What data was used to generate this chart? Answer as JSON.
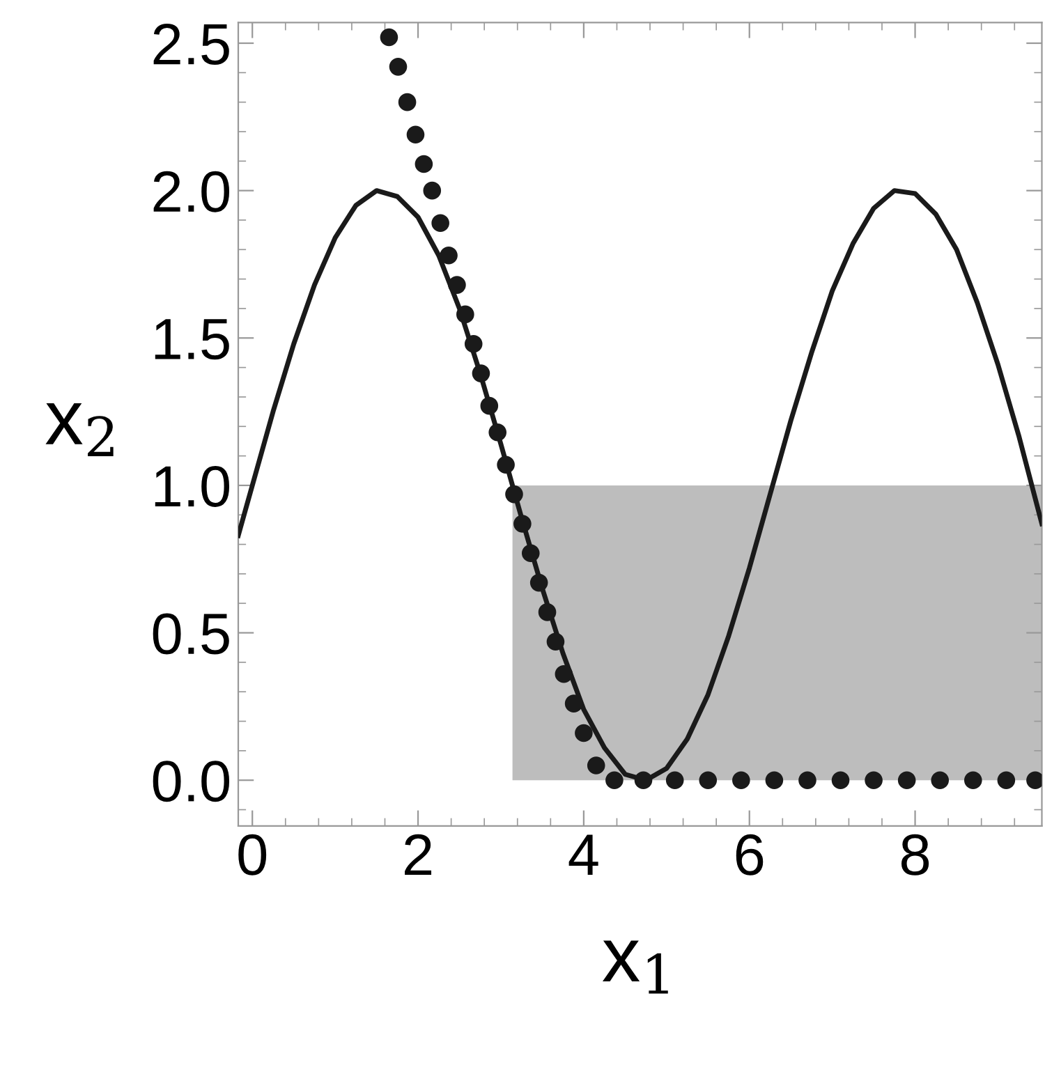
{
  "chart_data": {
    "type": "line",
    "xlabel": "x$_{1}$",
    "ylabel": "x$_{2}$",
    "xlim": [
      -0.17,
      9.53
    ],
    "ylim": [
      -0.155,
      2.57
    ],
    "xticks": [
      0,
      2,
      4,
      6,
      8
    ],
    "yticks": [
      {
        "value": 0,
        "label": "0.0"
      },
      {
        "value": 0.5,
        "label": "0.5"
      },
      {
        "value": 1,
        "label": "1.0"
      },
      {
        "value": 1.5,
        "label": "1.5"
      },
      {
        "value": 2,
        "label": "2.0"
      },
      {
        "value": 2.5,
        "label": "2.5"
      }
    ],
    "grid": false,
    "series": [
      {
        "type": "area",
        "color": "#bdbdbd",
        "x": [
          3.14,
          9.53
        ],
        "values": [
          1,
          1
        ]
      },
      {
        "color": "#1a1a1a",
        "line_style": "solid",
        "marker": "none",
        "x": [
          -0.17,
          0.0,
          0.25,
          0.5,
          0.75,
          1.0,
          1.25,
          1.5,
          1.75,
          2.0,
          2.25,
          2.5,
          2.75,
          3.0,
          3.25,
          3.5,
          3.75,
          4.0,
          4.25,
          4.5,
          4.75,
          5.0,
          5.25,
          5.5,
          5.75,
          6.0,
          6.25,
          6.5,
          6.75,
          7.0,
          7.25,
          7.5,
          7.75,
          8.0,
          8.25,
          8.5,
          8.75,
          9.0,
          9.25,
          9.53
        ],
        "values": [
          0.83,
          1.0,
          1.25,
          1.48,
          1.68,
          1.84,
          1.95,
          2.0,
          1.98,
          1.91,
          1.78,
          1.6,
          1.38,
          1.14,
          0.89,
          0.65,
          0.43,
          0.24,
          0.11,
          0.02,
          0.0,
          0.04,
          0.14,
          0.29,
          0.49,
          0.72,
          0.97,
          1.22,
          1.45,
          1.66,
          1.82,
          1.94,
          2.0,
          1.99,
          1.92,
          1.8,
          1.62,
          1.41,
          1.17,
          0.87
        ]
      },
      {
        "type": "scatter",
        "color": "#1a1a1a",
        "marker": "circle",
        "x": [
          1.65,
          1.76,
          1.87,
          1.97,
          2.07,
          2.17,
          2.27,
          2.37,
          2.47,
          2.57,
          2.67,
          2.76,
          2.86,
          2.96,
          3.06,
          3.16,
          3.26,
          3.36,
          3.46,
          3.56,
          3.66,
          3.76,
          3.88,
          4.0,
          4.15,
          4.37,
          4.72,
          5.1,
          5.5,
          5.9,
          6.3,
          6.7,
          7.1,
          7.5,
          7.9,
          8.3,
          8.7,
          9.1,
          9.45
        ],
        "values": [
          2.52,
          2.42,
          2.3,
          2.19,
          2.09,
          2.0,
          1.89,
          1.78,
          1.68,
          1.58,
          1.48,
          1.38,
          1.27,
          1.18,
          1.07,
          0.97,
          0.87,
          0.77,
          0.67,
          0.57,
          0.47,
          0.36,
          0.26,
          0.16,
          0.05,
          0,
          0,
          0,
          0,
          0,
          0,
          0,
          0,
          0,
          0,
          0,
          0,
          0,
          0
        ]
      }
    ]
  }
}
